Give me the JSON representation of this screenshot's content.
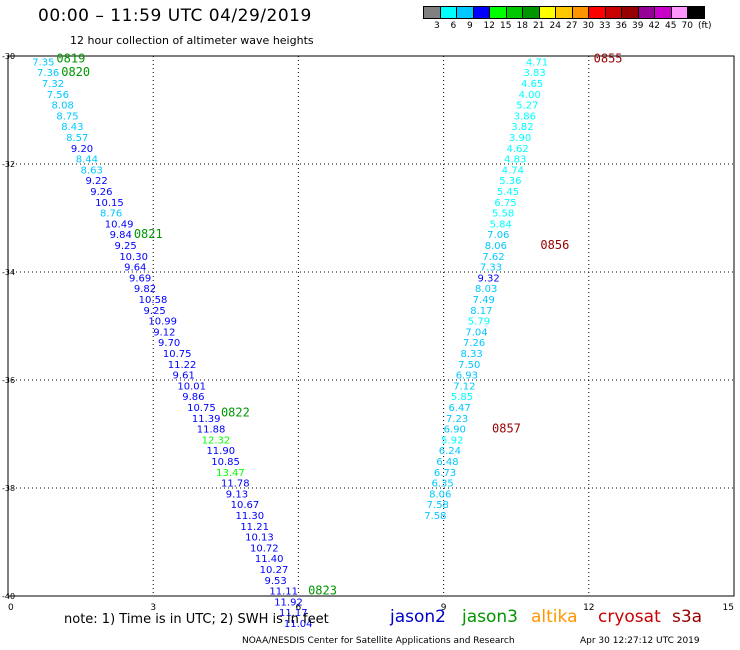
{
  "header": {
    "title": "00:00 – 11:59 UTC 04/29/2019",
    "subtitle": "12 hour collection of altimeter wave heights"
  },
  "colorbar": {
    "colors": [
      "#808080",
      "#00ffff",
      "#00c8ff",
      "#0000ff",
      "#00ff00",
      "#00c800",
      "#009600",
      "#ffff00",
      "#ffc800",
      "#ff9600",
      "#ff0000",
      "#c80000",
      "#960000",
      "#960096",
      "#c800c8",
      "#ff96ff",
      "#000000"
    ],
    "labels": [
      "3",
      "6",
      "9",
      "12",
      "15",
      "18",
      "21",
      "24",
      "27",
      "30",
      "33",
      "36",
      "39",
      "42",
      "45",
      "70",
      "(ft)"
    ]
  },
  "chart_data": {
    "type": "scatter",
    "xlim": [
      0,
      15
    ],
    "ylim": [
      -40,
      -30
    ],
    "x_ticks": [
      "0",
      "3",
      "6",
      "9",
      "12",
      "15"
    ],
    "y_ticks": [
      "-30",
      "-32",
      "-34",
      "-36",
      "-38",
      "-40"
    ],
    "grid": true,
    "series": [
      {
        "name": "jason2",
        "points": [
          {
            "x": 0.5,
            "y": -30.1,
            "v": "7.35",
            "c": "#00c8ff"
          },
          {
            "x": 0.6,
            "y": -30.3,
            "v": "7.36",
            "c": "#00c8ff"
          },
          {
            "x": 0.7,
            "y": -30.5,
            "v": "7.32",
            "c": "#00c8ff"
          },
          {
            "x": 0.8,
            "y": -30.7,
            "v": "7.56",
            "c": "#00c8ff"
          },
          {
            "x": 0.9,
            "y": -30.9,
            "v": "8.08",
            "c": "#00c8ff"
          },
          {
            "x": 1.0,
            "y": -31.1,
            "v": "8.75",
            "c": "#00c8ff"
          },
          {
            "x": 1.1,
            "y": -31.3,
            "v": "8.43",
            "c": "#00c8ff"
          },
          {
            "x": 1.2,
            "y": -31.5,
            "v": "8.57",
            "c": "#00c8ff"
          },
          {
            "x": 1.3,
            "y": -31.7,
            "v": "9.20",
            "c": "#0000ff"
          },
          {
            "x": 1.4,
            "y": -31.9,
            "v": "8.44",
            "c": "#00c8ff"
          },
          {
            "x": 1.5,
            "y": -32.1,
            "v": "8.63",
            "c": "#00c8ff"
          },
          {
            "x": 1.6,
            "y": -32.3,
            "v": "9.22",
            "c": "#0000ff"
          },
          {
            "x": 1.7,
            "y": -32.5,
            "v": "9.26",
            "c": "#0000ff"
          },
          {
            "x": 1.8,
            "y": -32.7,
            "v": "10.15",
            "c": "#0000ff"
          },
          {
            "x": 1.9,
            "y": -32.9,
            "v": "8.76",
            "c": "#00c8ff"
          },
          {
            "x": 2.0,
            "y": -33.1,
            "v": "10.49",
            "c": "#0000ff"
          },
          {
            "x": 2.1,
            "y": -33.3,
            "v": "9.84",
            "c": "#0000ff"
          },
          {
            "x": 2.2,
            "y": -33.5,
            "v": "9.25",
            "c": "#0000ff"
          },
          {
            "x": 2.3,
            "y": -33.7,
            "v": "10.30",
            "c": "#0000ff"
          },
          {
            "x": 2.4,
            "y": -33.9,
            "v": "9.64",
            "c": "#0000ff"
          },
          {
            "x": 2.5,
            "y": -34.1,
            "v": "9.69",
            "c": "#0000ff"
          },
          {
            "x": 2.6,
            "y": -34.3,
            "v": "9.82",
            "c": "#0000ff"
          },
          {
            "x": 2.7,
            "y": -34.5,
            "v": "10.58",
            "c": "#0000ff"
          },
          {
            "x": 2.8,
            "y": -34.7,
            "v": "9.25",
            "c": "#0000ff"
          },
          {
            "x": 2.9,
            "y": -34.9,
            "v": "10.99",
            "c": "#0000ff"
          },
          {
            "x": 3.0,
            "y": -35.1,
            "v": "9.12",
            "c": "#0000ff"
          },
          {
            "x": 3.1,
            "y": -35.3,
            "v": "9.70",
            "c": "#0000ff"
          },
          {
            "x": 3.2,
            "y": -35.5,
            "v": "10.75",
            "c": "#0000ff"
          },
          {
            "x": 3.3,
            "y": -35.7,
            "v": "11.22",
            "c": "#0000ff"
          },
          {
            "x": 3.4,
            "y": -35.9,
            "v": "9.61",
            "c": "#0000ff"
          },
          {
            "x": 3.5,
            "y": -36.1,
            "v": "10.01",
            "c": "#0000ff"
          },
          {
            "x": 3.6,
            "y": -36.3,
            "v": "9.86",
            "c": "#0000ff"
          },
          {
            "x": 3.7,
            "y": -36.5,
            "v": "10.75",
            "c": "#0000ff"
          },
          {
            "x": 3.8,
            "y": -36.7,
            "v": "11.39",
            "c": "#0000ff"
          },
          {
            "x": 3.9,
            "y": -36.9,
            "v": "11.88",
            "c": "#0000ff"
          },
          {
            "x": 4.0,
            "y": -37.1,
            "v": "12.32",
            "c": "#00ff00"
          },
          {
            "x": 4.1,
            "y": -37.3,
            "v": "11.90",
            "c": "#0000ff"
          },
          {
            "x": 4.2,
            "y": -37.5,
            "v": "10.85",
            "c": "#0000ff"
          },
          {
            "x": 4.3,
            "y": -37.7,
            "v": "13.47",
            "c": "#00ff00"
          },
          {
            "x": 4.4,
            "y": -37.9,
            "v": "11.78",
            "c": "#0000ff"
          },
          {
            "x": 4.5,
            "y": -38.1,
            "v": "9.13",
            "c": "#0000ff"
          },
          {
            "x": 4.6,
            "y": -38.3,
            "v": "10.67",
            "c": "#0000ff"
          },
          {
            "x": 4.7,
            "y": -38.5,
            "v": "11.30",
            "c": "#0000ff"
          },
          {
            "x": 4.8,
            "y": -38.7,
            "v": "11.21",
            "c": "#0000ff"
          },
          {
            "x": 4.9,
            "y": -38.9,
            "v": "10.13",
            "c": "#0000ff"
          },
          {
            "x": 5.0,
            "y": -39.1,
            "v": "10.72",
            "c": "#0000ff"
          },
          {
            "x": 5.1,
            "y": -39.3,
            "v": "11.40",
            "c": "#0000ff"
          },
          {
            "x": 5.2,
            "y": -39.5,
            "v": "10.27",
            "c": "#0000ff"
          },
          {
            "x": 5.3,
            "y": -39.7,
            "v": "9.53",
            "c": "#0000ff"
          },
          {
            "x": 5.4,
            "y": -39.9,
            "v": "11.11",
            "c": "#0000ff"
          },
          {
            "x": 5.5,
            "y": -40.1,
            "v": "11.92",
            "c": "#0000ff"
          },
          {
            "x": 5.6,
            "y": -40.3,
            "v": "11.17",
            "c": "#0000ff"
          },
          {
            "x": 5.7,
            "y": -40.5,
            "v": "11.04",
            "c": "#0000ff"
          }
        ]
      },
      {
        "name": "cryosat",
        "points": [
          {
            "x": 10.7,
            "y": -30.1,
            "v": "4.71",
            "c": "#00ffff"
          },
          {
            "x": 10.65,
            "y": -30.3,
            "v": "3.83",
            "c": "#00ffff"
          },
          {
            "x": 10.6,
            "y": -30.5,
            "v": "4.65",
            "c": "#00ffff"
          },
          {
            "x": 10.55,
            "y": -30.7,
            "v": "4.00",
            "c": "#00ffff"
          },
          {
            "x": 10.5,
            "y": -30.9,
            "v": "5.27",
            "c": "#00ffff"
          },
          {
            "x": 10.45,
            "y": -31.1,
            "v": "3.86",
            "c": "#00ffff"
          },
          {
            "x": 10.4,
            "y": -31.3,
            "v": "3.82",
            "c": "#00ffff"
          },
          {
            "x": 10.35,
            "y": -31.5,
            "v": "3.90",
            "c": "#00ffff"
          },
          {
            "x": 10.3,
            "y": -31.7,
            "v": "4.62",
            "c": "#00ffff"
          },
          {
            "x": 10.25,
            "y": -31.9,
            "v": "4.83",
            "c": "#00ffff"
          },
          {
            "x": 10.2,
            "y": -32.1,
            "v": "4.74",
            "c": "#00ffff"
          },
          {
            "x": 10.15,
            "y": -32.3,
            "v": "5.36",
            "c": "#00ffff"
          },
          {
            "x": 10.1,
            "y": -32.5,
            "v": "5.45",
            "c": "#00ffff"
          },
          {
            "x": 10.05,
            "y": -32.7,
            "v": "6.75",
            "c": "#00ffff"
          },
          {
            "x": 10.0,
            "y": -32.9,
            "v": "5.58",
            "c": "#00ffff"
          },
          {
            "x": 9.95,
            "y": -33.1,
            "v": "5.84",
            "c": "#00ffff"
          },
          {
            "x": 9.9,
            "y": -33.3,
            "v": "7.06",
            "c": "#00c8ff"
          },
          {
            "x": 9.85,
            "y": -33.5,
            "v": "8.06",
            "c": "#00c8ff"
          },
          {
            "x": 9.8,
            "y": -33.7,
            "v": "7.62",
            "c": "#00c8ff"
          },
          {
            "x": 9.75,
            "y": -33.9,
            "v": "7.33",
            "c": "#00c8ff"
          },
          {
            "x": 9.7,
            "y": -34.1,
            "v": "9.32",
            "c": "#0000ff"
          },
          {
            "x": 9.65,
            "y": -34.3,
            "v": "8.03",
            "c": "#00c8ff"
          },
          {
            "x": 9.6,
            "y": -34.5,
            "v": "7.49",
            "c": "#00c8ff"
          },
          {
            "x": 9.55,
            "y": -34.7,
            "v": "8.17",
            "c": "#00c8ff"
          },
          {
            "x": 9.5,
            "y": -34.9,
            "v": "5.79",
            "c": "#00ffff"
          },
          {
            "x": 9.45,
            "y": -35.1,
            "v": "7.04",
            "c": "#00c8ff"
          },
          {
            "x": 9.4,
            "y": -35.3,
            "v": "7.26",
            "c": "#00c8ff"
          },
          {
            "x": 9.35,
            "y": -35.5,
            "v": "8.33",
            "c": "#00c8ff"
          },
          {
            "x": 9.3,
            "y": -35.7,
            "v": "7.50",
            "c": "#00c8ff"
          },
          {
            "x": 9.25,
            "y": -35.9,
            "v": "6.93",
            "c": "#00c8ff"
          },
          {
            "x": 9.2,
            "y": -36.1,
            "v": "7.12",
            "c": "#00c8ff"
          },
          {
            "x": 9.15,
            "y": -36.3,
            "v": "5.85",
            "c": "#00ffff"
          },
          {
            "x": 9.1,
            "y": -36.5,
            "v": "6.47",
            "c": "#00c8ff"
          },
          {
            "x": 9.05,
            "y": -36.7,
            "v": "7.23",
            "c": "#00c8ff"
          },
          {
            "x": 9.0,
            "y": -36.9,
            "v": "6.90",
            "c": "#00c8ff"
          },
          {
            "x": 8.95,
            "y": -37.1,
            "v": "5.92",
            "c": "#00ffff"
          },
          {
            "x": 8.9,
            "y": -37.3,
            "v": "6.24",
            "c": "#00c8ff"
          },
          {
            "x": 8.85,
            "y": -37.5,
            "v": "6.48",
            "c": "#00c8ff"
          },
          {
            "x": 8.8,
            "y": -37.7,
            "v": "6.73",
            "c": "#00c8ff"
          },
          {
            "x": 8.75,
            "y": -37.9,
            "v": "6.35",
            "c": "#00c8ff"
          },
          {
            "x": 8.7,
            "y": -38.1,
            "v": "8.06",
            "c": "#00c8ff"
          },
          {
            "x": 8.65,
            "y": -38.3,
            "v": "7.58",
            "c": "#00c8ff"
          },
          {
            "x": 8.6,
            "y": -38.5,
            "v": "7.58",
            "c": "#00c8ff"
          }
        ]
      }
    ],
    "time_labels": [
      {
        "text": "0819",
        "x": 1.0,
        "y": -30.05,
        "c": "#009600"
      },
      {
        "text": "0820",
        "x": 1.1,
        "y": -30.3,
        "c": "#009600"
      },
      {
        "text": "0821",
        "x": 2.6,
        "y": -33.3,
        "c": "#009600"
      },
      {
        "text": "0822",
        "x": 4.4,
        "y": -36.6,
        "c": "#009600"
      },
      {
        "text": "0823",
        "x": 6.2,
        "y": -39.9,
        "c": "#009600"
      },
      {
        "text": "0855",
        "x": 12.1,
        "y": -30.05,
        "c": "#960000"
      },
      {
        "text": "0856",
        "x": 11.0,
        "y": -33.5,
        "c": "#960000"
      },
      {
        "text": "0857",
        "x": 10.0,
        "y": -36.9,
        "c": "#960000"
      }
    ]
  },
  "note": "note:  1) Time is in UTC;  2) SWH is in feet",
  "legend": [
    {
      "label": "jason2",
      "color": "#0000cc"
    },
    {
      "label": "jason3",
      "color": "#009600"
    },
    {
      "label": "altika",
      "color": "#ff9600"
    },
    {
      "label": "cryosat",
      "color": "#cc0000"
    },
    {
      "label": "s3a",
      "color": "#960000"
    }
  ],
  "footer": {
    "credit": "NOAA/NESDIS Center for Satellite Applications and Research",
    "date": "Apr 30 12:27:12 UTC 2019"
  }
}
